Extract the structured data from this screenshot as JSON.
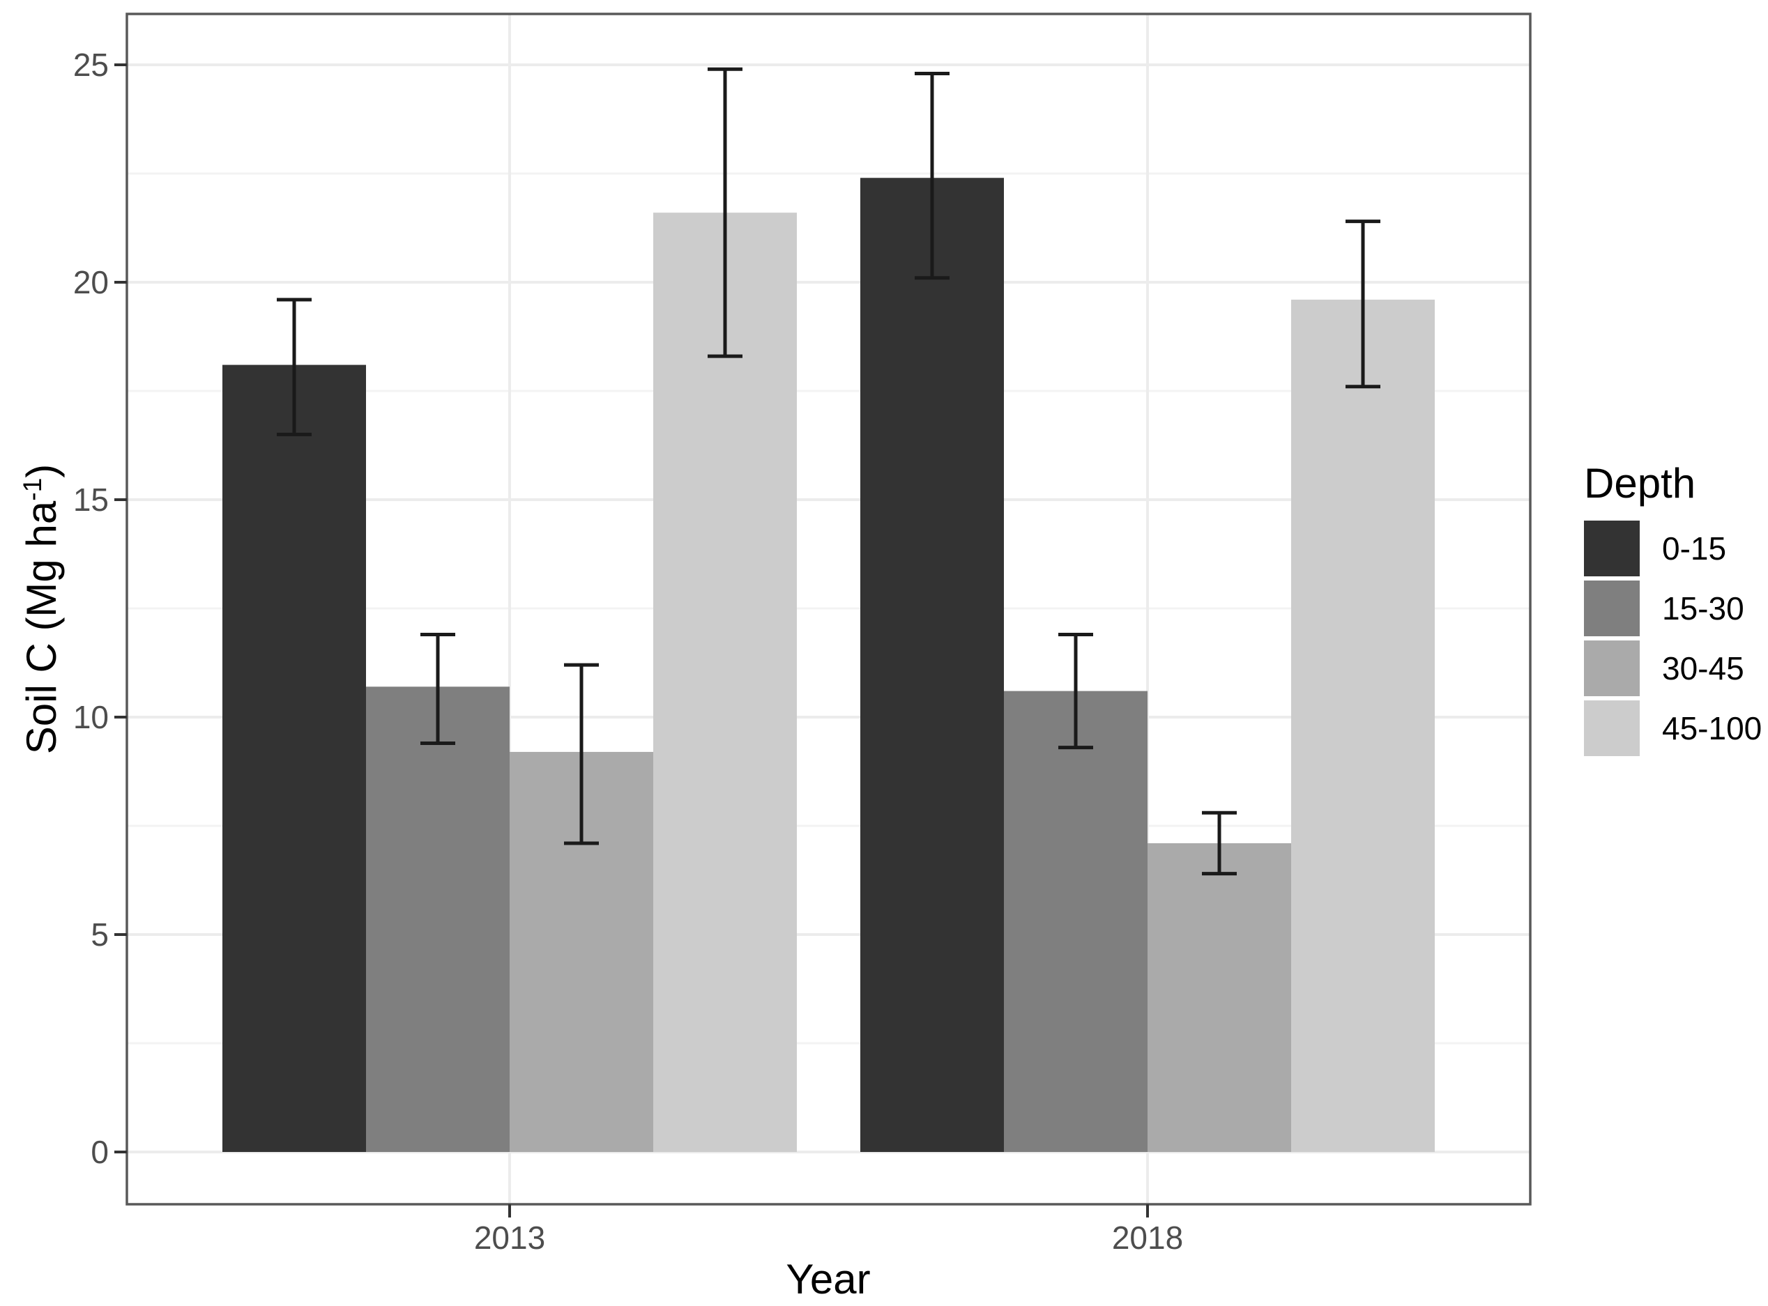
{
  "figure": {
    "background": "#ffffff"
  },
  "chart_data": {
    "type": "bar",
    "title": "",
    "xlabel": "Year",
    "ylabel": "Soil C (Mg ha⁻¹)",
    "ylabel_parts": {
      "prefix": "Soil C (Mg ha",
      "sup": "-1",
      "suffix": ")"
    },
    "categories": [
      "2013",
      "2018"
    ],
    "series": [
      {
        "name": "0-15",
        "color": "#333333",
        "values": [
          18.1,
          22.4
        ],
        "error_low": [
          16.5,
          20.1
        ],
        "error_high": [
          19.6,
          24.8
        ]
      },
      {
        "name": "15-30",
        "color": "#7f7f7f",
        "values": [
          10.7,
          10.6
        ],
        "error_low": [
          9.4,
          9.3
        ],
        "error_high": [
          11.9,
          11.9
        ]
      },
      {
        "name": "30-45",
        "color": "#aaaaaa",
        "values": [
          9.2,
          7.1
        ],
        "error_low": [
          7.1,
          6.4
        ],
        "error_high": [
          11.2,
          7.8
        ]
      },
      {
        "name": "45-100",
        "color": "#cccccc",
        "values": [
          21.6,
          19.6
        ],
        "error_low": [
          18.3,
          17.6
        ],
        "error_high": [
          24.9,
          21.4
        ]
      }
    ],
    "error_bars": true,
    "ylim": [
      0,
      26.2
    ],
    "y_major_ticks": [
      0,
      5,
      10,
      15,
      20,
      25
    ],
    "y_minor_ticks": [
      2.5,
      7.5,
      12.5,
      17.5,
      22.5
    ],
    "legend": {
      "title": "Depth",
      "position": "right"
    },
    "grid": {
      "horizontal": "major and minor gridlines",
      "vertical": "major gridline at each category center"
    }
  },
  "colors": {
    "background": "#ffffff",
    "panel_border": "#595959",
    "grid_major": "#ececec",
    "grid_minor": "#f3f3f3",
    "tick": "#333333",
    "tick_label": "#4d4d4d",
    "axis_title": "#000000",
    "error_bar": "#1a1a1a",
    "legend_text": "#000000"
  }
}
